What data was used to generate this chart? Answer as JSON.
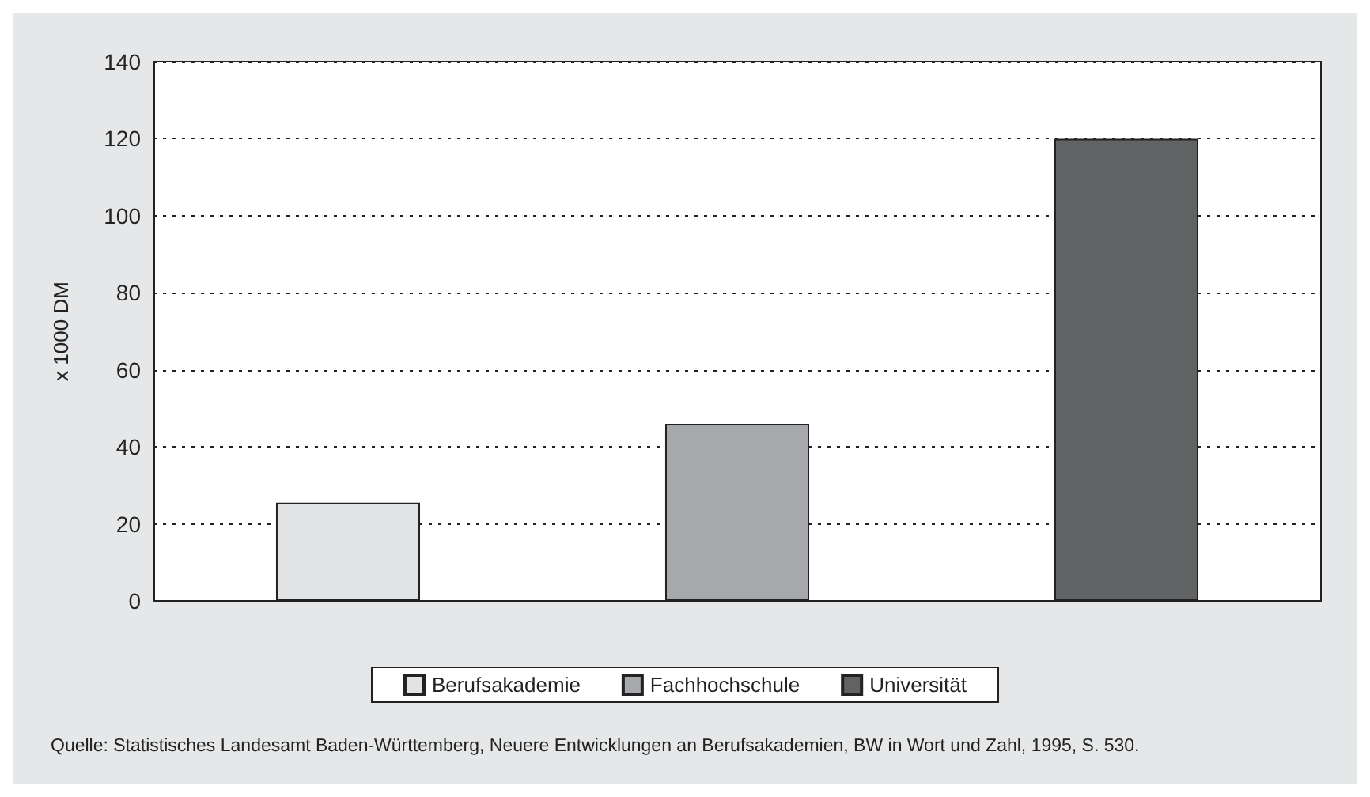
{
  "chart_data": {
    "type": "bar",
    "ylabel": "x 1000 DM",
    "categories": [
      null,
      null,
      null
    ],
    "series": [
      {
        "name": "Berufsakademie",
        "color": "#e2e3e5",
        "values": [
          25.5,
          null,
          null
        ]
      },
      {
        "name": "Fachhochschule",
        "color": "#a7a8ab",
        "values": [
          null,
          46,
          null
        ]
      },
      {
        "name": "Universität",
        "color": "#616264",
        "values": [
          null,
          null,
          120
        ]
      }
    ],
    "ylim": [
      0,
      140
    ],
    "yticks": [
      0,
      20,
      40,
      60,
      80,
      100,
      120,
      140
    ],
    "grid": "y",
    "legend": "bottom",
    "annotations": [
      "Quelle: Statistisches Landesamt Baden-Württemberg, Neuere Entwicklungen an Berufsakademien, BW in Wort und Zahl, 1995, S. 530."
    ]
  }
}
